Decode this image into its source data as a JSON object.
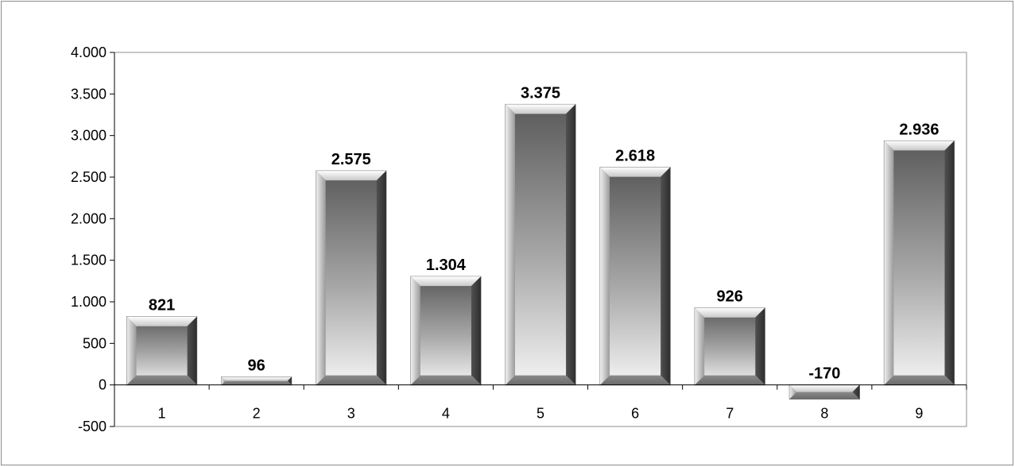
{
  "chart_data": {
    "type": "bar",
    "title": "",
    "xlabel": "",
    "ylabel": "",
    "categories": [
      "1",
      "2",
      "3",
      "4",
      "5",
      "6",
      "7",
      "8",
      "9"
    ],
    "values": [
      821,
      96,
      2575,
      1304,
      3375,
      2618,
      926,
      -170,
      2936
    ],
    "data_labels": [
      "821",
      "96",
      "2.575",
      "1.304",
      "3.375",
      "2.618",
      "926",
      "-170",
      "2.936"
    ],
    "ylim": [
      -500,
      4000
    ],
    "y_ticks": [
      -500,
      0,
      500,
      1000,
      1500,
      2000,
      2500,
      3000,
      3500,
      4000
    ],
    "y_tick_labels": [
      "-500",
      "0",
      "500",
      "1.000",
      "1.500",
      "2.000",
      "2.500",
      "3.000",
      "3.500",
      "4.000"
    ],
    "grid": false,
    "legend": "none",
    "bar_style": "beveled gray gradient",
    "colors": {
      "bar_dark": "#5a5a5a",
      "bar_light": "#f4f4f4",
      "plot_border": "#8c8c8c",
      "axis": "#000000"
    }
  }
}
